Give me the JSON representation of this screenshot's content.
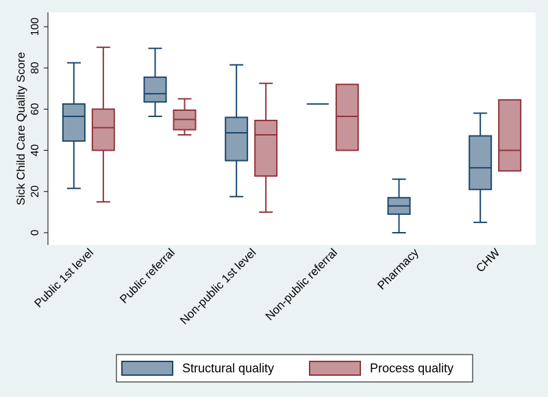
{
  "chart_data": {
    "type": "boxplot",
    "ylabel": "Sick Child Care Quality Score",
    "ylim": [
      -6,
      107
    ],
    "yticks": [
      0,
      20,
      40,
      60,
      80,
      100
    ],
    "categories": [
      "Public 1st level",
      "Public referral",
      "Non-public 1st level",
      "Non-public referral",
      "Pharmacy",
      "CHW"
    ],
    "series": [
      {
        "name": "Structural quality",
        "color": "#8aa0b4",
        "stroke": "#1a476f",
        "boxes": [
          {
            "min": 21.5,
            "q1": 44.5,
            "median": 56.5,
            "q3": 62.5,
            "max": 82.5
          },
          {
            "min": 56.5,
            "q1": 63.5,
            "median": 67.5,
            "q3": 75.5,
            "max": 89.5
          },
          {
            "min": 17.5,
            "q1": 35,
            "median": 48.5,
            "q3": 56,
            "max": 81.5
          },
          {
            "min": 62.5,
            "q1": 62.5,
            "median": 62.5,
            "q3": 62.5,
            "max": 62.5
          },
          {
            "min": 0,
            "q1": 9,
            "median": 13,
            "q3": 17,
            "max": 26
          },
          {
            "min": 5,
            "q1": 21,
            "median": 31.5,
            "q3": 47,
            "max": 58
          }
        ]
      },
      {
        "name": "Process quality",
        "color": "#c6959a",
        "stroke": "#90353b",
        "boxes": [
          {
            "min": 15,
            "q1": 40,
            "median": 51,
            "q3": 60,
            "max": 90
          },
          {
            "min": 47.5,
            "q1": 50,
            "median": 55,
            "q3": 59.5,
            "max": 65
          },
          {
            "min": 10,
            "q1": 27.5,
            "median": 47.5,
            "q3": 54.5,
            "max": 72.5
          },
          {
            "min": 40,
            "q1": 40,
            "median": 56.5,
            "q3": 72,
            "max": 72
          },
          null,
          {
            "min": 30,
            "q1": 30,
            "median": 40,
            "q3": 64.5,
            "max": 64.5
          }
        ]
      }
    ],
    "legend_position": "bottom-center"
  }
}
